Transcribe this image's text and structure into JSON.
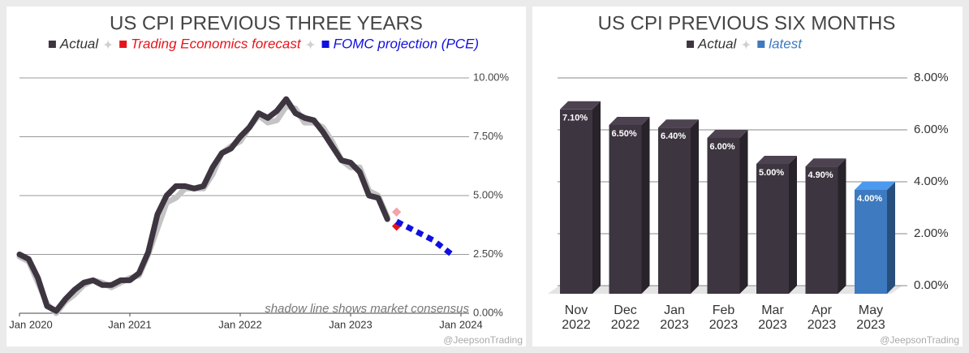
{
  "chart_data": [
    {
      "type": "line",
      "title": "US CPI PREVIOUS THREE YEARS",
      "annotation": "shadow line shows market consensus",
      "watermark": "@JeepsonTrading",
      "x": [
        "2020-01",
        "2020-02",
        "2020-03",
        "2020-04",
        "2020-05",
        "2020-06",
        "2020-07",
        "2020-08",
        "2020-09",
        "2020-10",
        "2020-11",
        "2020-12",
        "2021-01",
        "2021-02",
        "2021-03",
        "2021-04",
        "2021-05",
        "2021-06",
        "2021-07",
        "2021-08",
        "2021-09",
        "2021-10",
        "2021-11",
        "2021-12",
        "2022-01",
        "2022-02",
        "2022-03",
        "2022-04",
        "2022-05",
        "2022-06",
        "2022-07",
        "2022-08",
        "2022-09",
        "2022-10",
        "2022-11",
        "2022-12",
        "2023-01",
        "2023-02",
        "2023-03",
        "2023-04",
        "2023-05"
      ],
      "xlim": [
        "2020-01",
        "2024-01"
      ],
      "xticks": [
        {
          "value": "2020-01",
          "label": "Jan 2020"
        },
        {
          "value": "2021-01",
          "label": "Jan 2021"
        },
        {
          "value": "2022-01",
          "label": "Jan 2022"
        },
        {
          "value": "2023-01",
          "label": "Jan 2023"
        },
        {
          "value": "2024-01",
          "label": "Jan 2024"
        }
      ],
      "ylim": [
        0,
        10
      ],
      "yticks": [
        {
          "value": 0,
          "label": "0.00%"
        },
        {
          "value": 2.5,
          "label": "2.50%"
        },
        {
          "value": 5,
          "label": "5.00%"
        },
        {
          "value": 7.5,
          "label": "7.50%"
        },
        {
          "value": 10,
          "label": "10.00%"
        }
      ],
      "grid": true,
      "series": [
        {
          "color": "#c4c4c4",
          "values": [
            2.4,
            2.2,
            1.3,
            0.4,
            0.0,
            0.5,
            0.8,
            1.2,
            1.4,
            1.3,
            1.1,
            1.3,
            1.5,
            1.6,
            2.5,
            3.6,
            4.7,
            4.9,
            5.3,
            5.3,
            5.3,
            5.9,
            6.8,
            7.1,
            7.3,
            7.9,
            8.4,
            8.1,
            8.2,
            8.8,
            8.7,
            8.1,
            8.1,
            7.9,
            7.3,
            6.5,
            6.2,
            6.2,
            5.2,
            5.0,
            4.1
          ]
        },
        {
          "name": "Actual",
          "color": "#3d3540",
          "values": [
            2.5,
            2.3,
            1.5,
            0.3,
            0.1,
            0.6,
            1.0,
            1.3,
            1.4,
            1.2,
            1.2,
            1.4,
            1.4,
            1.7,
            2.6,
            4.2,
            5.0,
            5.4,
            5.4,
            5.3,
            5.4,
            6.2,
            6.8,
            7.0,
            7.5,
            7.9,
            8.5,
            8.3,
            8.6,
            9.1,
            8.5,
            8.3,
            8.2,
            7.7,
            7.1,
            6.5,
            6.4,
            6.0,
            5.0,
            4.9,
            4.0
          ]
        },
        {
          "color": "#f4a3ab",
          "x": [
            "2023-06"
          ],
          "values": [
            4.3
          ]
        },
        {
          "name": "Trading Economics forecast",
          "color": "#e8141c",
          "x": [
            "2023-06"
          ],
          "values": [
            3.7
          ]
        },
        {
          "name": "FOMC projection (PCE)",
          "color": "#1010e0",
          "dashed": true,
          "x": [
            "2023-06",
            "2023-07",
            "2023-08",
            "2023-09",
            "2023-10",
            "2023-11",
            "2023-12"
          ],
          "values": [
            3.9,
            3.7,
            3.5,
            3.3,
            3.1,
            2.8,
            2.5
          ]
        }
      ]
    },
    {
      "type": "bar3d",
      "title": "US CPI PREVIOUS SIX MONTHS",
      "watermark": "@JeepsonTrading",
      "categories": [
        [
          "Nov",
          "2022"
        ],
        [
          "Dec",
          "2022"
        ],
        [
          "Jan",
          "2023"
        ],
        [
          "Feb",
          "2023"
        ],
        [
          "Mar",
          "2023"
        ],
        [
          "Apr",
          "2023"
        ],
        [
          "May",
          "2023"
        ]
      ],
      "ylim": [
        0,
        8
      ],
      "yticks": [
        {
          "value": 0,
          "label": "0.00%"
        },
        {
          "value": 2,
          "label": "2.00%"
        },
        {
          "value": 4,
          "label": "4.00%"
        },
        {
          "value": 6,
          "label": "6.00%"
        },
        {
          "value": 8,
          "label": "8.00%"
        }
      ],
      "grid": true,
      "series": [
        {
          "name": "Actual",
          "color": "#3d3540",
          "values": [
            7.1,
            6.5,
            6.4,
            6.0,
            5.0,
            4.9,
            null
          ],
          "value_labels": [
            "7.10%",
            "6.50%",
            "6.40%",
            "6.00%",
            "5.00%",
            "4.90%",
            null
          ]
        },
        {
          "name": "latest",
          "color": "#3d7abf",
          "values": [
            null,
            null,
            null,
            null,
            null,
            null,
            4.0
          ],
          "value_labels": [
            null,
            null,
            null,
            null,
            null,
            null,
            "4.00%"
          ]
        }
      ]
    }
  ]
}
